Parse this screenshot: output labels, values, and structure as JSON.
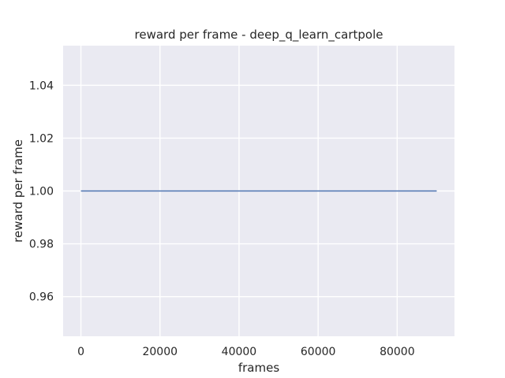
{
  "chart_data": {
    "type": "line",
    "title": "reward per frame - deep_q_learn_cartpole",
    "xlabel": "frames",
    "ylabel": "reward per frame",
    "xlim": [
      -4500,
      94500
    ],
    "ylim": [
      0.945,
      1.055
    ],
    "xticks": [
      0,
      20000,
      40000,
      60000,
      80000
    ],
    "xtick_labels": [
      "0",
      "20000",
      "40000",
      "60000",
      "80000"
    ],
    "yticks": [
      0.96,
      0.98,
      1.0,
      1.02,
      1.04
    ],
    "ytick_labels": [
      "0.96",
      "0.98",
      "1.00",
      "1.02",
      "1.04"
    ],
    "grid": true,
    "series": [
      {
        "x": [
          0,
          90000
        ],
        "y": [
          1.0,
          1.0
        ]
      }
    ],
    "colors": {
      "plot_bg": "#eaeaf2",
      "grid": "#ffffff",
      "line": "#4c72b0",
      "text": "#262626"
    }
  }
}
